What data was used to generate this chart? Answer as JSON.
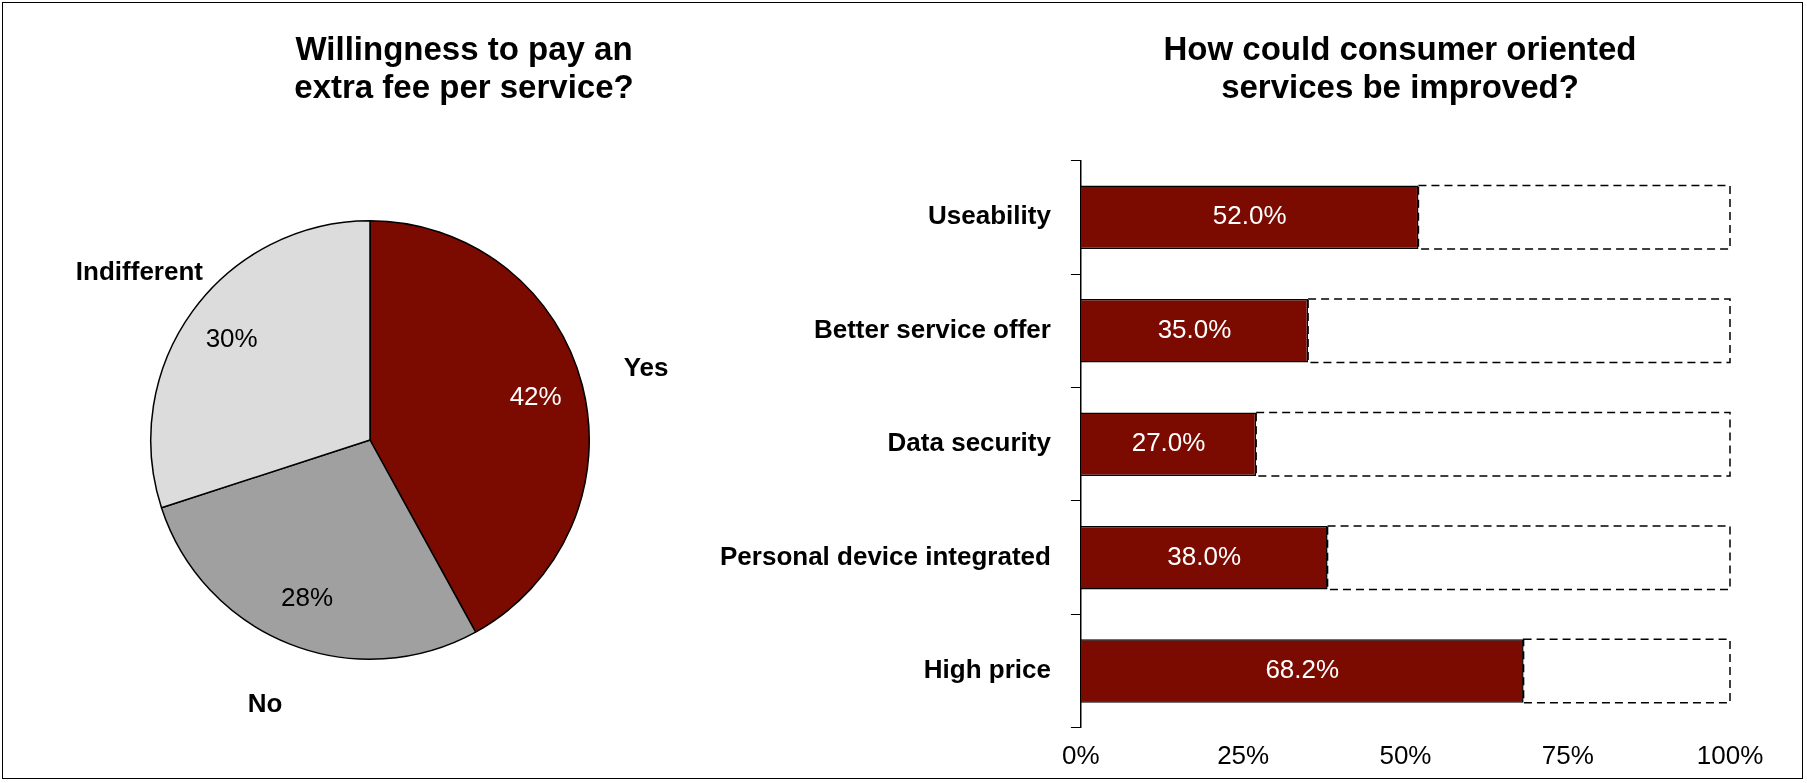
{
  "chart_data": [
    {
      "type": "pie",
      "title": "Willingness to pay an extra fee per service?",
      "categories": [
        "Yes",
        "No",
        "Indifferent"
      ],
      "values": [
        42,
        28,
        30
      ],
      "colors": [
        "#7b0a00",
        "#a0a0a0",
        "#dcdcdc"
      ],
      "value_labels": [
        "42%",
        "28%",
        "30%"
      ],
      "legend": false
    },
    {
      "type": "bar",
      "orientation": "horizontal",
      "stacked": true,
      "title": "How could consumer oriented services be improved?",
      "categories": [
        "Useability",
        "Better service offer",
        "Data security",
        "Personal device integrated",
        "High price"
      ],
      "series": [
        {
          "color": "#7b0a00",
          "values": [
            52.0,
            35.0,
            27.0,
            38.0,
            68.2
          ],
          "value_labels": [
            "52.0%",
            "35.0%",
            "27.0%",
            "38.0%",
            "68.2%"
          ]
        },
        {
          "color": "#ffffff",
          "values": [
            48.0,
            65.0,
            73.0,
            62.0,
            31.8
          ],
          "line_style": "dashed"
        }
      ],
      "xlim": [
        0,
        100
      ],
      "xticks": [
        {
          "value": 0,
          "label": "0%"
        },
        {
          "value": 25,
          "label": "25%"
        },
        {
          "value": 50,
          "label": "50%"
        },
        {
          "value": 75,
          "label": "75%"
        },
        {
          "value": 100,
          "label": "100%"
        }
      ],
      "grid": false,
      "legend": false
    }
  ]
}
